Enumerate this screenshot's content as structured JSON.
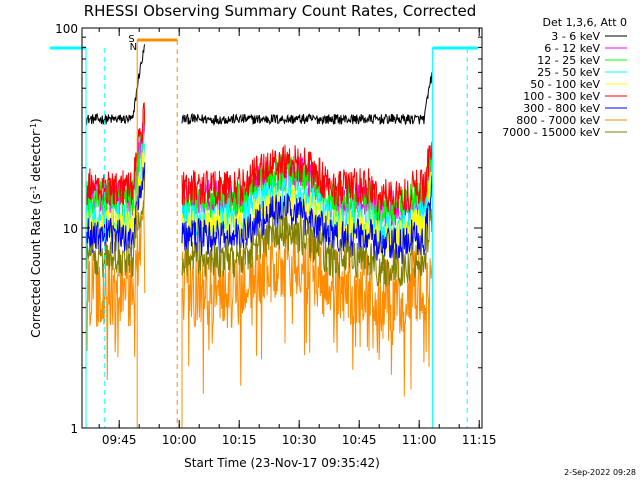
{
  "chart_data": {
    "type": "line",
    "title": "RHESSI Observing Summary Count Rates, Corrected",
    "xlabel": "Start Time (23-Nov-17 09:35:42)",
    "ylabel_prefix": "Corrected Count Rate (s",
    "ylabel_sup1": "-1",
    "ylabel_mid": " detector",
    "ylabel_sup2": "-1",
    "ylabel_suffix": ")",
    "y_scale": "log",
    "ylim": [
      1,
      100
    ],
    "xlim_minutes": [
      0,
      100
    ],
    "x_ticks": [
      {
        "minute": 9.3,
        "label": "09:45"
      },
      {
        "minute": 24.3,
        "label": "10:00"
      },
      {
        "minute": 39.3,
        "label": "10:15"
      },
      {
        "minute": 54.3,
        "label": "10:30"
      },
      {
        "minute": 69.3,
        "label": "10:45"
      },
      {
        "minute": 84.3,
        "label": "11:00"
      },
      {
        "minute": 99.3,
        "label": "11:15"
      }
    ],
    "y_ticks": [
      {
        "value": 1,
        "label": "1"
      },
      {
        "value": 10,
        "label": "10"
      },
      {
        "value": 100,
        "label": "100"
      }
    ],
    "legend_header": "Det 1,3,6, Att 0",
    "legend_position": "right",
    "series": [
      {
        "name": "3 - 6 keV",
        "color": "#000000",
        "base": 35
      },
      {
        "name": "6 - 12 keV",
        "color": "#ff00ff",
        "base": 14
      },
      {
        "name": "12 - 25 keV",
        "color": "#00ff00",
        "base": 14
      },
      {
        "name": "25 - 50 keV",
        "color": "#00ffff",
        "base": 11
      },
      {
        "name": "50 - 100 keV",
        "color": "#ffff00",
        "base": 10
      },
      {
        "name": "100 - 300 keV",
        "color": "#ff0000",
        "base": 16
      },
      {
        "name": "300 - 800 keV",
        "color": "#0000ff",
        "base": 9
      },
      {
        "name": "800 - 7000 keV",
        "color": "#ff8c00",
        "base": 5
      },
      {
        "name": "7000 - 15000 keV",
        "color": "#808000",
        "base": 7
      }
    ],
    "segments_minutes": [
      [
        1.0,
        15.8
      ],
      [
        25.0,
        87.6
      ]
    ],
    "eclipse_bars_minutes": [
      [
        -8,
        1.0
      ],
      [
        87.6,
        99
      ]
    ],
    "flag_S_label": "S",
    "flag_N_label": "N",
    "date_stamp": "2-Sep-2022 09:28"
  }
}
